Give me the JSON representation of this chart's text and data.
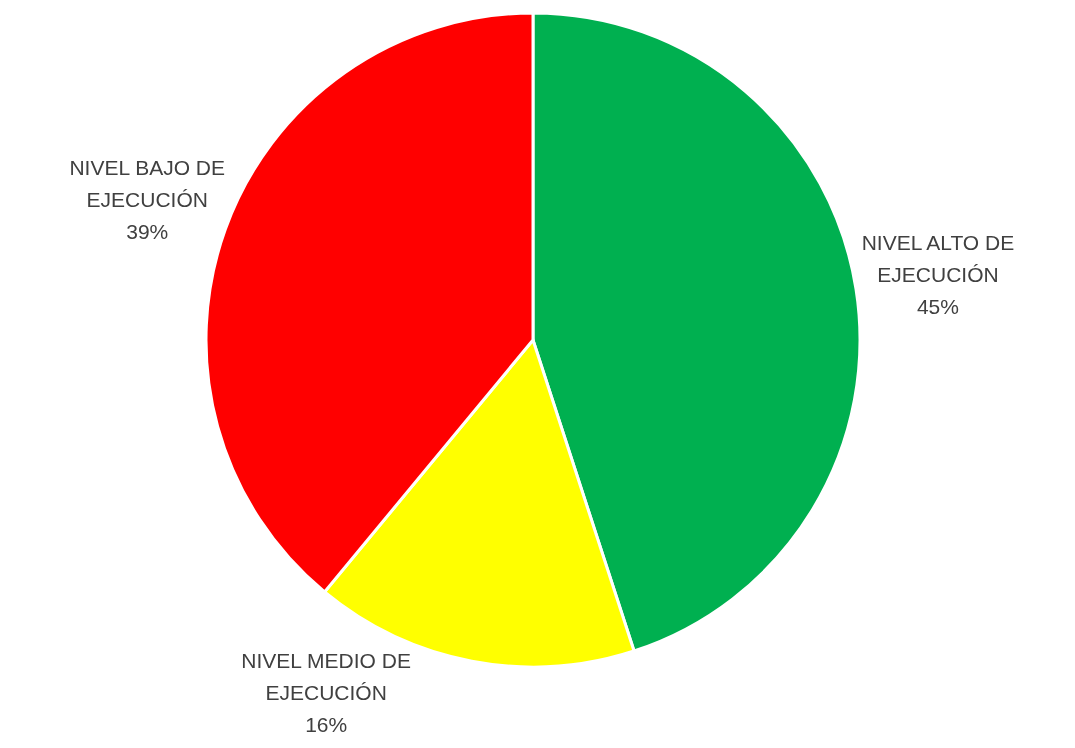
{
  "chart_data": {
    "type": "pie",
    "categories": [
      "NIVEL ALTO DE EJECUCIÓN",
      "NIVEL MEDIO DE EJECUCIÓN",
      "NIVEL BAJO DE EJECUCIÓN"
    ],
    "values": [
      45,
      16,
      39
    ],
    "value_labels": [
      "45%",
      "16%",
      "39%"
    ],
    "colors": [
      "#00b050",
      "#ffff00",
      "#ff0000"
    ]
  }
}
